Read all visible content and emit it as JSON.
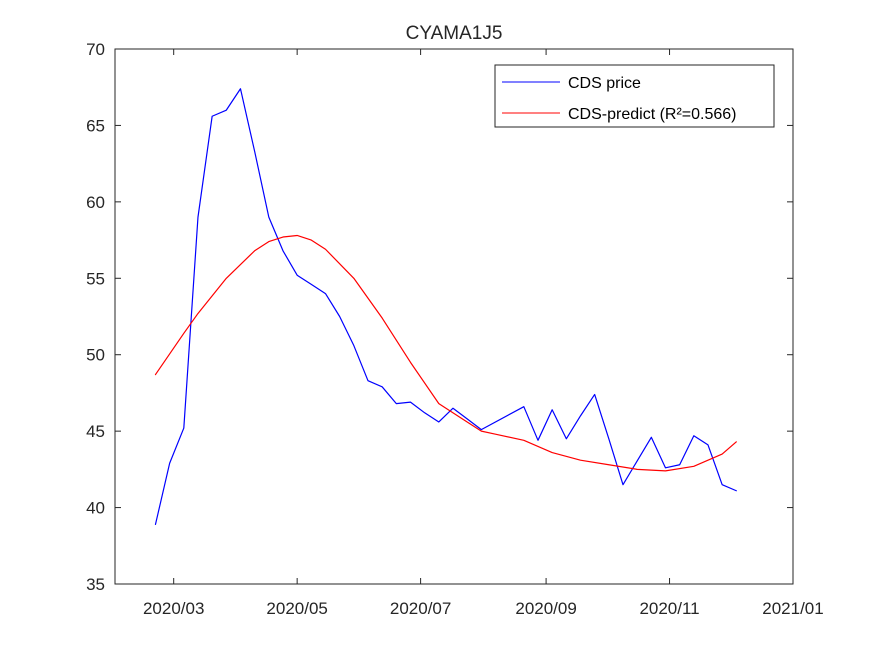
{
  "chart_data": {
    "type": "line",
    "title": "CYAMA1J5",
    "xlabel": "",
    "ylabel": "",
    "x_axis": {
      "ticks": [
        "2020/03",
        "2020/05",
        "2020/07",
        "2020/09",
        "2020/11",
        "2021/01"
      ],
      "range": [
        "2020-02-01",
        "2021-01-01"
      ]
    },
    "ylim": [
      35,
      70
    ],
    "yticks": [
      35,
      40,
      45,
      50,
      55,
      60,
      65,
      70
    ],
    "grid": false,
    "legend_position": "top-right",
    "series": [
      {
        "name": "CDS price",
        "color": "#0000ff",
        "x": [
          "2020-02-21",
          "2020-02-28",
          "2020-03-06",
          "2020-03-13",
          "2020-03-20",
          "2020-03-27",
          "2020-04-03",
          "2020-04-10",
          "2020-04-17",
          "2020-04-24",
          "2020-05-01",
          "2020-05-08",
          "2020-05-15",
          "2020-05-22",
          "2020-05-29",
          "2020-06-05",
          "2020-06-12",
          "2020-06-19",
          "2020-06-26",
          "2020-07-03",
          "2020-07-10",
          "2020-07-17",
          "2020-07-24",
          "2020-07-31",
          "2020-08-21",
          "2020-08-28",
          "2020-09-04",
          "2020-09-11",
          "2020-09-18",
          "2020-09-25",
          "2020-10-02",
          "2020-10-09",
          "2020-10-23",
          "2020-10-30",
          "2020-11-06",
          "2020-11-13",
          "2020-11-20",
          "2020-11-27",
          "2020-12-04"
        ],
        "values": [
          38.9,
          42.9,
          45.2,
          59.0,
          65.6,
          66.0,
          67.4,
          63.3,
          59.0,
          56.8,
          55.2,
          54.6,
          54.0,
          52.5,
          50.6,
          48.3,
          47.9,
          46.8,
          46.9,
          46.2,
          45.6,
          46.5,
          45.8,
          45.1,
          46.6,
          44.4,
          46.4,
          44.5,
          46.0,
          47.4,
          44.5,
          41.5,
          44.6,
          42.6,
          42.8,
          44.7,
          44.1,
          41.5,
          41.1
        ]
      },
      {
        "name": "CDS-predict (R²=0.566)",
        "color": "#ff0000",
        "x": [
          "2020-02-21",
          "2020-03-06",
          "2020-03-13",
          "2020-03-27",
          "2020-04-10",
          "2020-04-17",
          "2020-04-24",
          "2020-05-01",
          "2020-05-08",
          "2020-05-15",
          "2020-05-29",
          "2020-06-12",
          "2020-06-26",
          "2020-07-10",
          "2020-07-24",
          "2020-07-31",
          "2020-08-07",
          "2020-08-21",
          "2020-09-04",
          "2020-09-18",
          "2020-10-02",
          "2020-10-16",
          "2020-10-30",
          "2020-11-13",
          "2020-11-27",
          "2020-12-04"
        ],
        "values": [
          48.7,
          51.4,
          52.7,
          55.0,
          56.8,
          57.4,
          57.7,
          57.8,
          57.5,
          56.9,
          55.0,
          52.4,
          49.5,
          46.8,
          45.6,
          45.0,
          44.8,
          44.4,
          43.6,
          43.1,
          42.8,
          42.5,
          42.4,
          42.7,
          43.5,
          44.3
        ]
      }
    ]
  }
}
